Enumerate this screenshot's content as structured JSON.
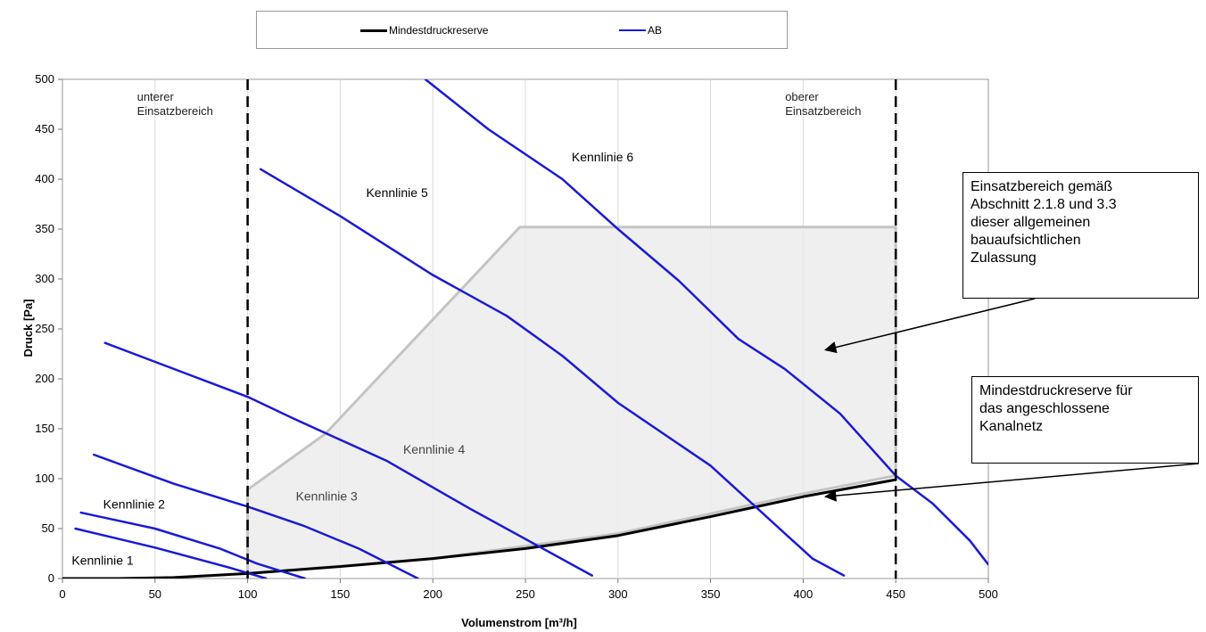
{
  "chart_data": {
    "type": "line",
    "title": "",
    "xlabel": "Volumenstrom [m³/h]",
    "ylabel": "Druck [Pa]",
    "xlim": [
      0,
      500
    ],
    "ylim": [
      0,
      500
    ],
    "x_ticks": [
      0,
      50,
      100,
      150,
      200,
      250,
      300,
      350,
      400,
      450,
      500
    ],
    "y_ticks": [
      0,
      50,
      100,
      150,
      200,
      250,
      300,
      350,
      400,
      450,
      500
    ],
    "grid": "vertical",
    "legend": {
      "position": "top",
      "entries": [
        {
          "name": "Mindestdruckreserve",
          "color": "#000000"
        },
        {
          "name": "AB",
          "color": "#1a1ad6"
        }
      ]
    },
    "series": [
      {
        "name": "Mindestdruckreserve",
        "color": "#000000",
        "points": [
          [
            0,
            0
          ],
          [
            30,
            0
          ],
          [
            60,
            1
          ],
          [
            100,
            5
          ],
          [
            150,
            12
          ],
          [
            200,
            20
          ],
          [
            250,
            30
          ],
          [
            300,
            43
          ],
          [
            350,
            62
          ],
          [
            400,
            82
          ],
          [
            450,
            99
          ]
        ]
      },
      {
        "label": "Kennlinie 1",
        "color": "#1a1ad6",
        "points": [
          [
            7,
            50
          ],
          [
            50,
            31
          ],
          [
            90,
            11
          ],
          [
            110,
            0
          ]
        ]
      },
      {
        "label": "Kennlinie 2",
        "color": "#1a1ad6",
        "points": [
          [
            10,
            66
          ],
          [
            50,
            50
          ],
          [
            85,
            30
          ],
          [
            105,
            15
          ],
          [
            131,
            0
          ]
        ]
      },
      {
        "label": "Kennlinie 3",
        "color": "#1a1ad6",
        "points": [
          [
            17,
            124
          ],
          [
            60,
            95
          ],
          [
            100,
            72
          ],
          [
            130,
            53
          ],
          [
            160,
            30
          ],
          [
            192,
            0
          ]
        ]
      },
      {
        "label": "Kennlinie 4",
        "color": "#1a1ad6",
        "points": [
          [
            23,
            236
          ],
          [
            70,
            203
          ],
          [
            100,
            182
          ],
          [
            125,
            160
          ],
          [
            175,
            118
          ],
          [
            220,
            70
          ],
          [
            286,
            3
          ]
        ]
      },
      {
        "label": "Kennlinie 5",
        "color": "#1a1ad6",
        "points": [
          [
            107,
            410
          ],
          [
            150,
            363
          ],
          [
            200,
            304
          ],
          [
            240,
            263
          ],
          [
            270,
            223
          ],
          [
            300,
            176
          ],
          [
            350,
            113
          ],
          [
            405,
            20
          ],
          [
            422,
            3
          ]
        ]
      },
      {
        "label": "Kennlinie 6",
        "color": "#1a1ad6",
        "points": [
          [
            196,
            500
          ],
          [
            230,
            450
          ],
          [
            270,
            400
          ],
          [
            300,
            350
          ],
          [
            333,
            298
          ],
          [
            365,
            240
          ],
          [
            390,
            210
          ],
          [
            420,
            165
          ],
          [
            450,
            103
          ],
          [
            470,
            75
          ],
          [
            490,
            38
          ],
          [
            500,
            14
          ]
        ]
      }
    ],
    "operating_region": {
      "label_lines": [
        "Einsatzbereich gemäß",
        "Abschnitt 2.1.8 und 3.3",
        "dieser allgemeinen",
        "bauaufsichtlichen",
        "Zulassung"
      ],
      "outline": [
        [
          100,
          5
        ],
        [
          100,
          89
        ],
        [
          142,
          145
        ],
        [
          247,
          352
        ],
        [
          450,
          352
        ],
        [
          450,
          103
        ],
        [
          400,
          85
        ],
        [
          300,
          45
        ],
        [
          200,
          20
        ],
        [
          100,
          5
        ]
      ]
    },
    "vertical_markers": [
      {
        "x": 100,
        "label_lines": [
          "unterer",
          "Einsatzbereich"
        ]
      },
      {
        "x": 450,
        "label_lines": [
          "oberer",
          "Einsatzbereich"
        ]
      }
    ],
    "annotations": [
      {
        "text": "Kennlinie 1",
        "x": 5,
        "y": 14
      },
      {
        "text": "Kennlinie 2",
        "x": 22,
        "y": 70
      },
      {
        "text": "Kennlinie 3",
        "x": 126,
        "y": 78
      },
      {
        "text": "Kennlinie 4",
        "x": 184,
        "y": 125
      },
      {
        "text": "Kennlinie 5",
        "x": 164,
        "y": 382
      },
      {
        "text": "Kennlinie 6",
        "x": 275,
        "y": 418
      }
    ],
    "callouts": [
      {
        "name": "operating-region",
        "lines": [
          "Einsatzbereich gemäß",
          "Abschnitt 2.1.8 und 3.3",
          "dieser allgemeinen",
          "bauaufsichtlichen",
          "Zulassung"
        ],
        "arrow_to": [
          412,
          229
        ]
      },
      {
        "name": "minimum-pressure",
        "lines": [
          "Mindestdruckreserve für",
          "das angeschlossene",
          "Kanalnetz"
        ],
        "arrow_to": [
          412,
          82
        ]
      }
    ]
  }
}
